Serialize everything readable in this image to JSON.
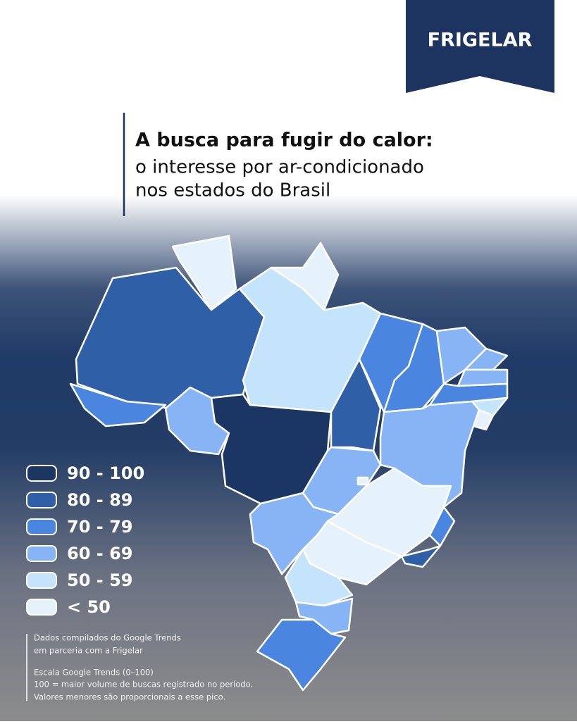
{
  "header": {
    "brand": "FRIGELAR",
    "title": "A busca para fugir do calor:",
    "subtitle_lines": [
      "o interesse por ar-condicionado",
      "nos estados do Brasil"
    ]
  },
  "legend": {
    "items": [
      {
        "label": "90 - 100",
        "color": "#1b3663"
      },
      {
        "label": "80 - 89",
        "color": "#2f5fa6"
      },
      {
        "label": "70 - 79",
        "color": "#4a86e0"
      },
      {
        "label": "60 - 69",
        "color": "#86b4f4"
      },
      {
        "label": "50 - 59",
        "color": "#c3e4fa"
      },
      {
        "label": "< 50",
        "color": "#e6f2fb"
      }
    ]
  },
  "notes": [
    "Dados compilados do Google Trends",
    "em parceria com a Frigelar",
    "Escala Google Trends (0–100)",
    "100 = maior volume de buscas registrado no período.",
    "Valores menores são proporcionais a esse pico."
  ]
}
